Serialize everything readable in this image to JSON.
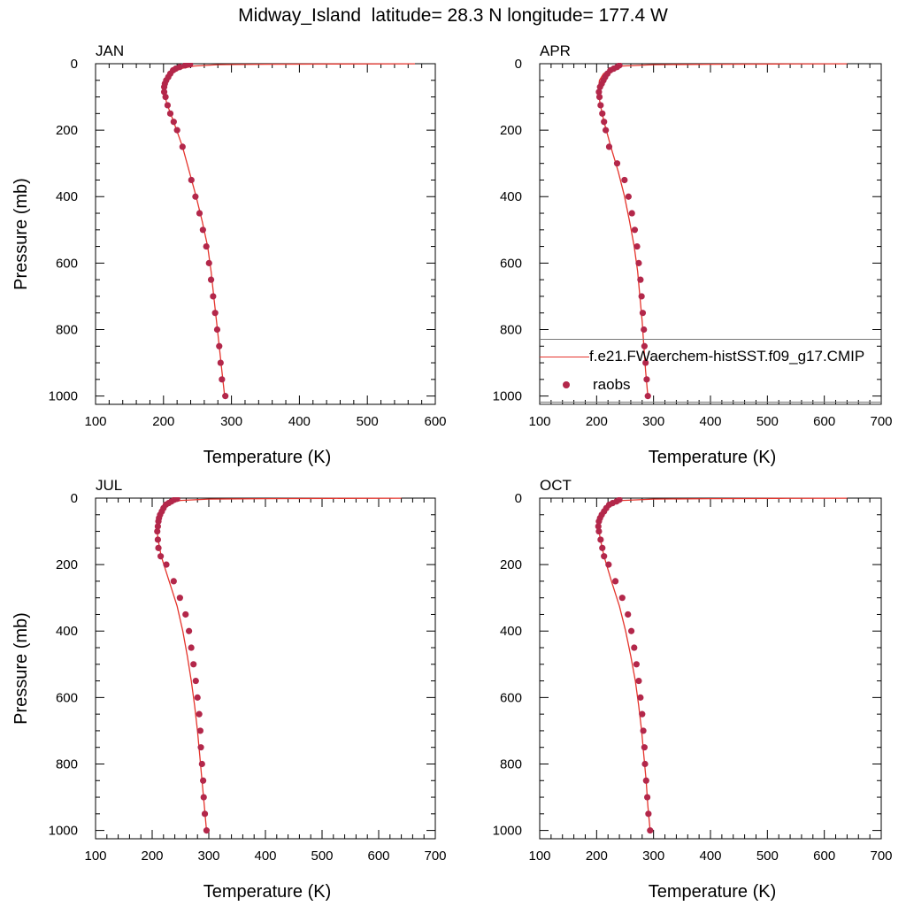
{
  "title": "Midway_Island  latitude= 28.3 N longitude= 177.4 W",
  "colors": {
    "model_line": "#e5342c",
    "raobs_marker": "#b3274a"
  },
  "legend": {
    "model_label": "f.e21.FWaerchem-histSST.f09_g17.CMIP",
    "obs_label": "raobs"
  },
  "chart_data": [
    {
      "type": "line",
      "panel": "JAN",
      "xlabel": "Temperature (K)",
      "ylabel": "Pressure (mb)",
      "xlim": [
        100,
        600
      ],
      "ylim": [
        1025,
        0
      ],
      "xticks": [
        100,
        200,
        300,
        400,
        500,
        600
      ],
      "yticks": [
        0,
        200,
        400,
        600,
        800,
        1000
      ],
      "show_ylabel": true,
      "model": {
        "t": [
          290,
          286,
          282,
          278,
          274,
          270,
          265,
          257,
          248,
          238,
          228,
          215,
          205,
          200,
          203,
          212,
          225,
          245,
          280,
          350,
          450,
          570
        ],
        "p": [
          1000,
          925,
          850,
          775,
          700,
          625,
          550,
          475,
          400,
          325,
          250,
          175,
          120,
          80,
          50,
          30,
          15,
          7,
          3,
          1.5,
          0.7,
          0.3
        ]
      },
      "raobs": {
        "t": [
          291,
          286,
          284,
          282,
          279,
          276,
          273,
          270,
          267,
          263,
          258,
          253,
          247,
          241,
          228,
          220,
          215,
          210,
          206,
          203,
          201,
          201,
          202,
          204,
          207,
          210,
          214,
          218,
          224,
          232,
          239
        ],
        "p": [
          1000,
          950,
          900,
          850,
          800,
          750,
          700,
          650,
          600,
          550,
          500,
          450,
          400,
          350,
          250,
          200,
          175,
          150,
          125,
          100,
          85,
          70,
          60,
          50,
          40,
          30,
          20,
          15,
          10,
          5,
          2
        ]
      }
    },
    {
      "type": "line",
      "panel": "APR",
      "xlabel": "Temperature (K)",
      "ylabel": "",
      "xlim": [
        100,
        700
      ],
      "ylim": [
        1025,
        0
      ],
      "xticks": [
        100,
        200,
        300,
        400,
        500,
        600,
        700
      ],
      "yticks": [
        0,
        200,
        400,
        600,
        800,
        1000
      ],
      "show_ylabel": false,
      "model": {
        "t": [
          290,
          286,
          283,
          280,
          276,
          272,
          266,
          258,
          249,
          238,
          225,
          213,
          206,
          203,
          205,
          212,
          225,
          245,
          300,
          400,
          520,
          640
        ],
        "p": [
          1000,
          925,
          850,
          775,
          700,
          625,
          550,
          475,
          400,
          325,
          250,
          175,
          120,
          80,
          50,
          30,
          15,
          7,
          3,
          1.5,
          0.7,
          0.3
        ]
      },
      "raobs": {
        "t": [
          290,
          288,
          286,
          284,
          283,
          281,
          279,
          277,
          274,
          271,
          267,
          262,
          256,
          249,
          236,
          222,
          216,
          213,
          210,
          207,
          205,
          204,
          206,
          209,
          212,
          215,
          219,
          224,
          230,
          236,
          240
        ],
        "p": [
          1000,
          950,
          900,
          850,
          800,
          750,
          700,
          650,
          600,
          550,
          500,
          450,
          400,
          350,
          300,
          250,
          200,
          175,
          150,
          125,
          100,
          85,
          70,
          60,
          50,
          40,
          30,
          20,
          15,
          10,
          5
        ]
      }
    },
    {
      "type": "line",
      "panel": "JUL",
      "xlabel": "Temperature (K)",
      "ylabel": "Pressure (mb)",
      "xlim": [
        100,
        700
      ],
      "ylim": [
        1025,
        0
      ],
      "xticks": [
        100,
        200,
        300,
        400,
        500,
        600,
        700
      ],
      "yticks": [
        0,
        200,
        400,
        600,
        800,
        1000
      ],
      "show_ylabel": true,
      "model": {
        "t": [
          296,
          292,
          288,
          284,
          280,
          275,
          269,
          262,
          254,
          244,
          230,
          216,
          210,
          208,
          211,
          218,
          230,
          250,
          300,
          400,
          520,
          640
        ],
        "p": [
          1000,
          925,
          850,
          775,
          700,
          625,
          550,
          475,
          400,
          325,
          250,
          175,
          120,
          80,
          50,
          30,
          15,
          7,
          3,
          1.5,
          0.7,
          0.3
        ]
      },
      "raobs": {
        "t": [
          296,
          293,
          291,
          290,
          288,
          286,
          285,
          283,
          280,
          277,
          273,
          269,
          265,
          259,
          249,
          238,
          225,
          215,
          211,
          210,
          209,
          210,
          211,
          212,
          214,
          217,
          220,
          224,
          229,
          234,
          239,
          244
        ],
        "p": [
          1000,
          950,
          900,
          850,
          800,
          750,
          700,
          650,
          600,
          550,
          500,
          450,
          400,
          350,
          300,
          250,
          200,
          175,
          150,
          125,
          100,
          85,
          70,
          60,
          50,
          40,
          30,
          20,
          15,
          10,
          5,
          2
        ]
      }
    },
    {
      "type": "line",
      "panel": "OCT",
      "xlabel": "Temperature (K)",
      "ylabel": "",
      "xlim": [
        100,
        700
      ],
      "ylim": [
        1025,
        0
      ],
      "xticks": [
        100,
        200,
        300,
        400,
        500,
        600,
        700
      ],
      "yticks": [
        0,
        200,
        400,
        600,
        800,
        1000
      ],
      "show_ylabel": false,
      "model": {
        "t": [
          294,
          290,
          287,
          283,
          279,
          274,
          268,
          260,
          251,
          240,
          226,
          213,
          206,
          203,
          206,
          213,
          226,
          246,
          300,
          400,
          520,
          640
        ],
        "p": [
          1000,
          925,
          850,
          775,
          700,
          625,
          550,
          475,
          400,
          325,
          250,
          175,
          120,
          80,
          50,
          30,
          15,
          7,
          3,
          1.5,
          0.7,
          0.3
        ]
      },
      "raobs": {
        "t": [
          294,
          291,
          289,
          287,
          285,
          284,
          282,
          280,
          277,
          274,
          270,
          266,
          261,
          255,
          245,
          233,
          221,
          213,
          210,
          207,
          204,
          203,
          204,
          206,
          209,
          213,
          217,
          222,
          228,
          235,
          240
        ],
        "p": [
          1000,
          950,
          900,
          850,
          800,
          750,
          700,
          650,
          600,
          550,
          500,
          450,
          400,
          350,
          300,
          250,
          200,
          175,
          150,
          125,
          100,
          85,
          70,
          60,
          50,
          40,
          30,
          20,
          15,
          10,
          5
        ]
      }
    }
  ]
}
